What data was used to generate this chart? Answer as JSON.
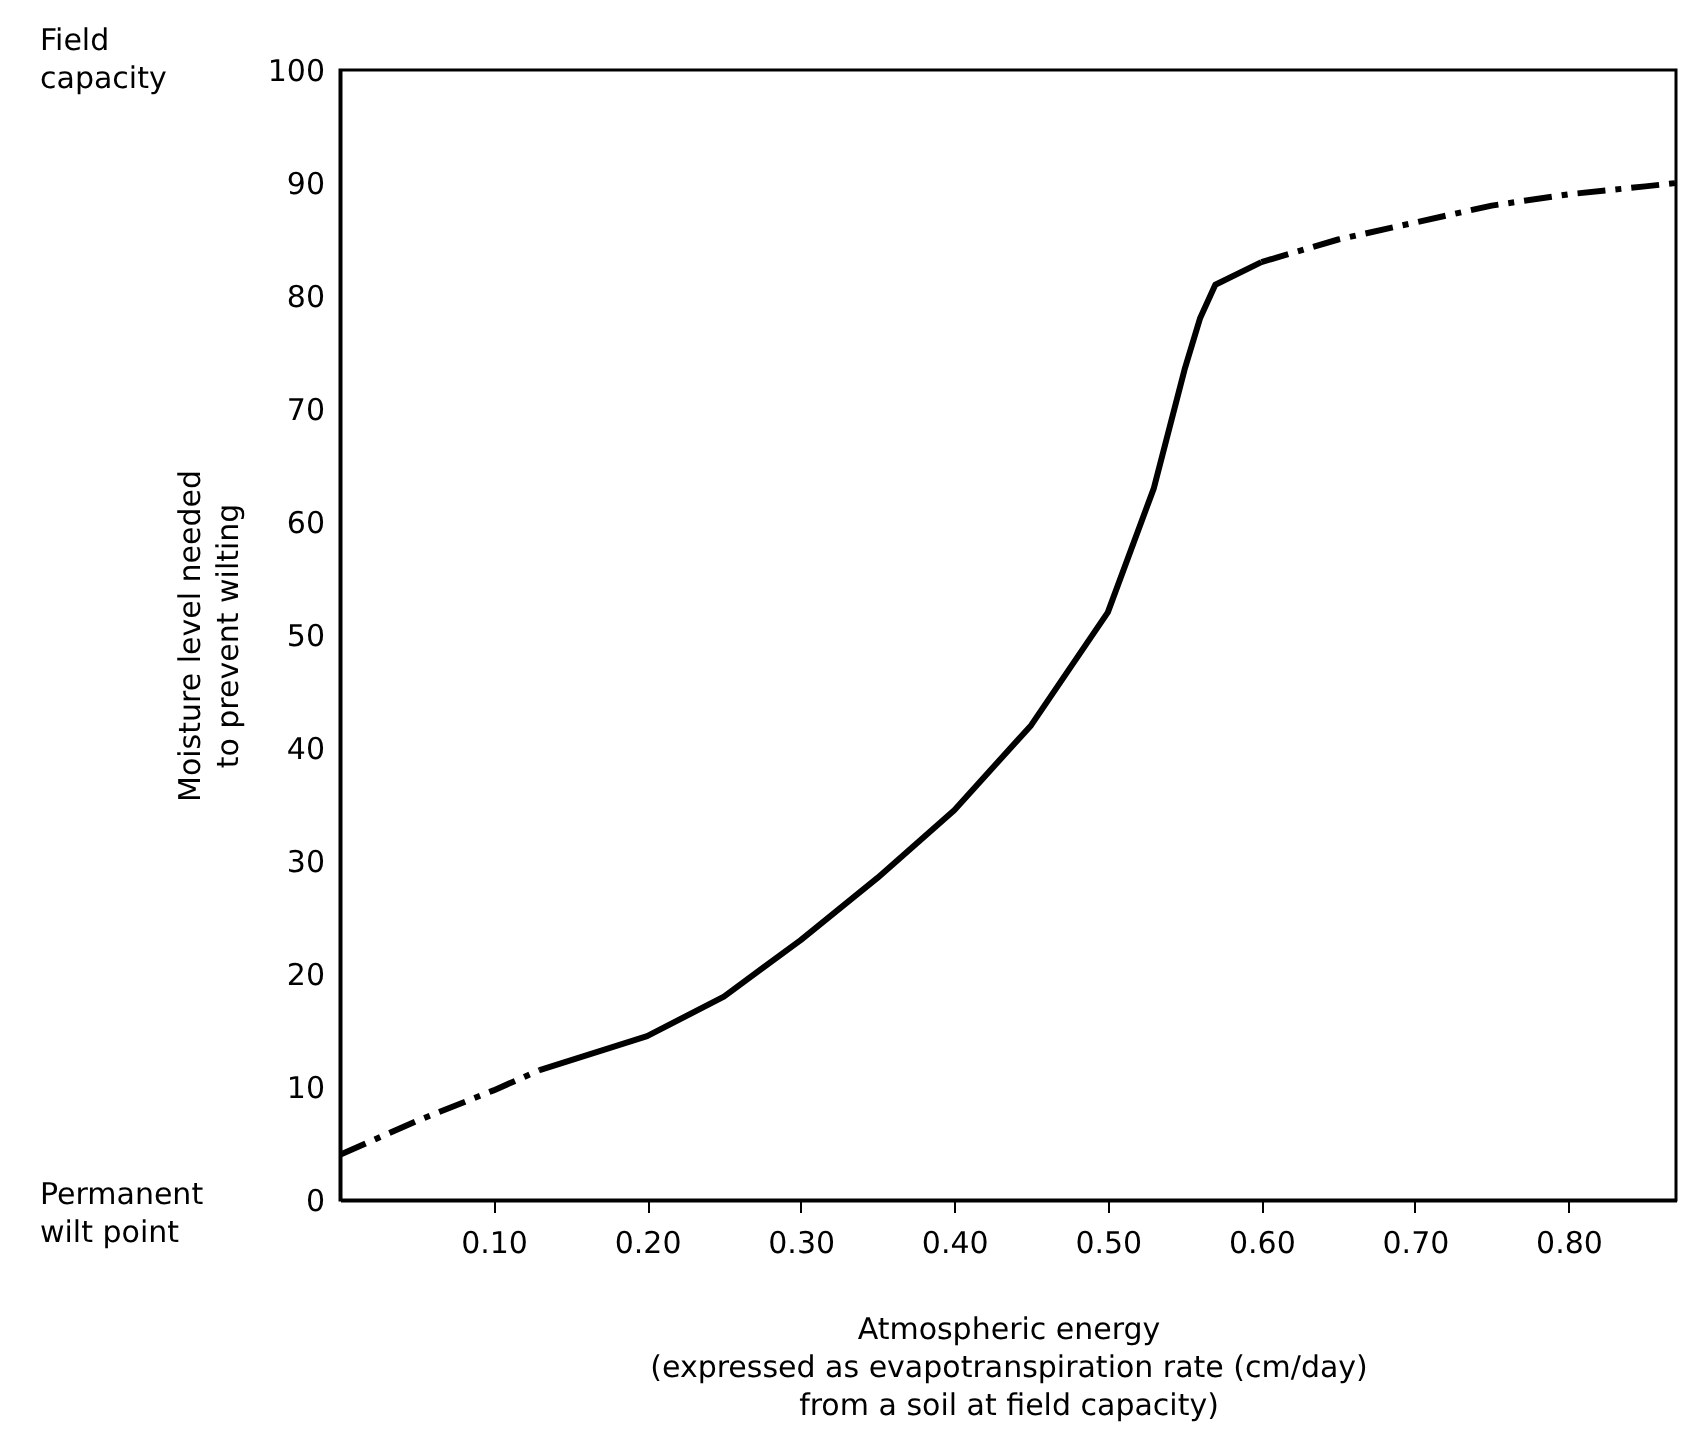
{
  "chart_data": {
    "type": "line",
    "xlabel": "Atmospheric energy\n(expressed as evapotranspiration rate (cm/day)\nfrom a soil at field capacity)",
    "ylabel": "Moisture level needed\nto prevent wilting",
    "xlim": [
      0,
      0.87
    ],
    "ylim": [
      0,
      100
    ],
    "xticks": [
      {
        "value": 0.1,
        "label": "0.10"
      },
      {
        "value": 0.2,
        "label": "0.20"
      },
      {
        "value": 0.3,
        "label": "0.30"
      },
      {
        "value": 0.4,
        "label": "0.40"
      },
      {
        "value": 0.5,
        "label": "0.50"
      },
      {
        "value": 0.6,
        "label": "0.60"
      },
      {
        "value": 0.7,
        "label": "0.70"
      },
      {
        "value": 0.8,
        "label": "0.80"
      }
    ],
    "yticks": [
      0,
      10,
      20,
      30,
      40,
      50,
      60,
      70,
      80,
      90,
      100
    ],
    "grid": false,
    "marker": "none",
    "series": [
      {
        "color": "#000000",
        "line_style": "dashed",
        "x": [
          0,
          0.05,
          0.1,
          0.13
        ],
        "values": [
          4,
          7,
          9.7,
          11.5
        ]
      },
      {
        "color": "#000000",
        "line_style": "solid",
        "x": [
          0.13,
          0.2,
          0.25,
          0.3,
          0.35,
          0.4,
          0.45,
          0.5,
          0.53,
          0.55,
          0.56,
          0.57,
          0.6
        ],
        "values": [
          11.5,
          14.5,
          18,
          23,
          28.5,
          34.5,
          42,
          52,
          63,
          73.5,
          78,
          81,
          83
        ]
      },
      {
        "color": "#000000",
        "line_style": "dashed",
        "x": [
          0.6,
          0.65,
          0.7,
          0.75,
          0.8,
          0.85,
          0.87
        ],
        "values": [
          83,
          85,
          86.5,
          88,
          89,
          89.7,
          90
        ]
      }
    ],
    "annotations": [
      "Field\ncapacity",
      "Permanent\nwilt point"
    ]
  }
}
